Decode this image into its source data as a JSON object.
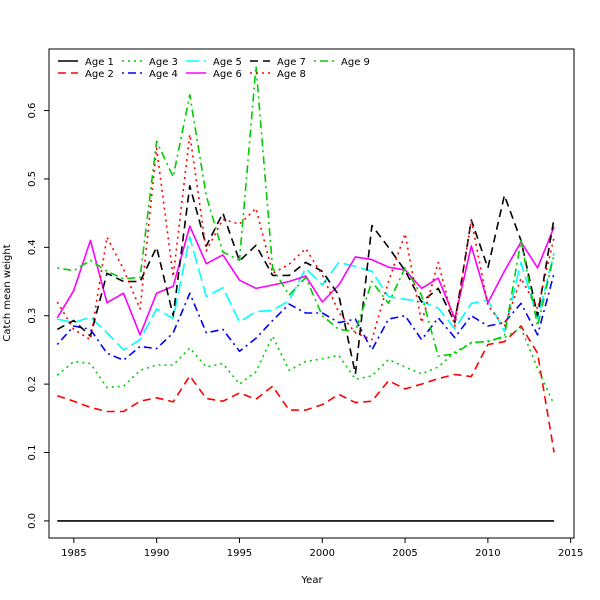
{
  "chart_data": {
    "type": "line",
    "xlabel": "Year",
    "ylabel": "Catch mean weight",
    "xlim": [
      1983.5,
      2015.2
    ],
    "ylim": [
      -0.025,
      0.69
    ],
    "x_ticks": [
      1985,
      1990,
      1995,
      2000,
      2005,
      2010,
      2015
    ],
    "y_ticks": [
      0.0,
      0.1,
      0.2,
      0.3,
      0.4,
      0.5,
      0.6
    ],
    "x_tick_labels": [
      "1985",
      "1990",
      "1995",
      "2000",
      "2005",
      "2010",
      "2015"
    ],
    "y_tick_labels": [
      "0.0",
      "0.1",
      "0.2",
      "0.3",
      "0.4",
      "0.5",
      "0.6"
    ],
    "legend_position": "top-left",
    "grid": false,
    "x": [
      1984,
      1985,
      1986,
      1987,
      1988,
      1989,
      1990,
      1991,
      1992,
      1993,
      1994,
      1995,
      1996,
      1997,
      1998,
      1999,
      2000,
      2001,
      2002,
      2003,
      2004,
      2005,
      2006,
      2007,
      2008,
      2009,
      2010,
      2011,
      2012,
      2013,
      2014
    ],
    "series": [
      {
        "name": "Age 1",
        "color": "#000000",
        "dash": "solid",
        "values": [
          0,
          0,
          0,
          0,
          0,
          0,
          0,
          0,
          0,
          0,
          0,
          0,
          0,
          0,
          0,
          0,
          0,
          0,
          0,
          0,
          0,
          0,
          0,
          0,
          0,
          0,
          0,
          0,
          0,
          0,
          0
        ]
      },
      {
        "name": "Age 2",
        "color": "#ff0000",
        "dash": "dashed",
        "values": [
          0.183,
          0.175,
          0.166,
          0.16,
          0.16,
          0.175,
          0.18,
          0.174,
          0.212,
          0.179,
          0.175,
          0.187,
          0.178,
          0.197,
          0.162,
          0.162,
          0.17,
          0.185,
          0.173,
          0.175,
          0.205,
          0.193,
          0.2,
          0.208,
          0.214,
          0.211,
          0.258,
          0.262,
          0.285,
          0.245,
          0.1
        ]
      },
      {
        "name": "Age 3",
        "color": "#00cd00",
        "dash": "dotted",
        "values": [
          0.213,
          0.233,
          0.23,
          0.195,
          0.197,
          0.22,
          0.228,
          0.228,
          0.253,
          0.225,
          0.23,
          0.2,
          0.218,
          0.27,
          0.22,
          0.233,
          0.237,
          0.242,
          0.207,
          0.212,
          0.236,
          0.225,
          0.215,
          0.225,
          0.247,
          0.26,
          0.263,
          0.268,
          0.282,
          0.223,
          0.17
        ]
      },
      {
        "name": "Age 4",
        "color": "#0000ff",
        "dash": "dotdash",
        "values": [
          0.258,
          0.285,
          0.28,
          0.245,
          0.235,
          0.255,
          0.252,
          0.275,
          0.333,
          0.275,
          0.28,
          0.248,
          0.267,
          0.293,
          0.317,
          0.304,
          0.304,
          0.29,
          0.295,
          0.25,
          0.295,
          0.3,
          0.265,
          0.297,
          0.268,
          0.3,
          0.285,
          0.29,
          0.318,
          0.272,
          0.362
        ]
      },
      {
        "name": "Age 5",
        "color": "#00ffff",
        "dash": "longdash",
        "values": [
          0.295,
          0.29,
          0.298,
          0.275,
          0.25,
          0.265,
          0.31,
          0.296,
          0.415,
          0.328,
          0.341,
          0.291,
          0.306,
          0.308,
          0.322,
          0.369,
          0.345,
          0.378,
          0.372,
          0.365,
          0.328,
          0.324,
          0.321,
          0.311,
          0.281,
          0.318,
          0.323,
          0.277,
          0.378,
          0.296,
          0.392
        ]
      },
      {
        "name": "Age 6",
        "color": "#ff00ff",
        "dash": "solid",
        "values": [
          0.297,
          0.337,
          0.41,
          0.319,
          0.333,
          0.272,
          0.333,
          0.343,
          0.431,
          0.376,
          0.389,
          0.352,
          0.34,
          0.345,
          0.35,
          0.358,
          0.32,
          0.345,
          0.386,
          0.382,
          0.371,
          0.367,
          0.34,
          0.355,
          0.296,
          0.402,
          0.319,
          0.365,
          0.408,
          0.37,
          0.43
        ]
      },
      {
        "name": "Age 7",
        "color": "#000000",
        "dash": "dashed",
        "values": [
          0.28,
          0.293,
          0.27,
          0.362,
          0.35,
          0.35,
          0.4,
          0.3,
          0.49,
          0.402,
          0.45,
          0.38,
          0.403,
          0.359,
          0.359,
          0.378,
          0.365,
          0.33,
          0.215,
          0.432,
          0.4,
          0.366,
          0.32,
          0.34,
          0.29,
          0.44,
          0.37,
          0.476,
          0.41,
          0.3,
          0.443
        ]
      },
      {
        "name": "Age 8",
        "color": "#ff0000",
        "dash": "dotted",
        "values": [
          0.32,
          0.28,
          0.265,
          0.415,
          0.368,
          0.31,
          0.545,
          0.357,
          0.565,
          0.395,
          0.441,
          0.434,
          0.457,
          0.362,
          0.375,
          0.398,
          0.36,
          0.305,
          0.275,
          0.265,
          0.35,
          0.42,
          0.29,
          0.378,
          0.285,
          0.44,
          0.315,
          0.284,
          0.355,
          0.31,
          0.415
        ]
      },
      {
        "name": "Age 9",
        "color": "#00cd00",
        "dash": "dotdash",
        "values": [
          0.37,
          0.366,
          0.381,
          0.365,
          0.354,
          0.356,
          0.555,
          0.503,
          0.623,
          0.475,
          0.393,
          0.381,
          0.665,
          0.37,
          0.33,
          0.356,
          0.3,
          0.28,
          0.277,
          0.35,
          0.318,
          0.37,
          0.33,
          0.241,
          0.244,
          0.261,
          0.262,
          0.27,
          0.41,
          0.285,
          0.39
        ]
      }
    ]
  }
}
